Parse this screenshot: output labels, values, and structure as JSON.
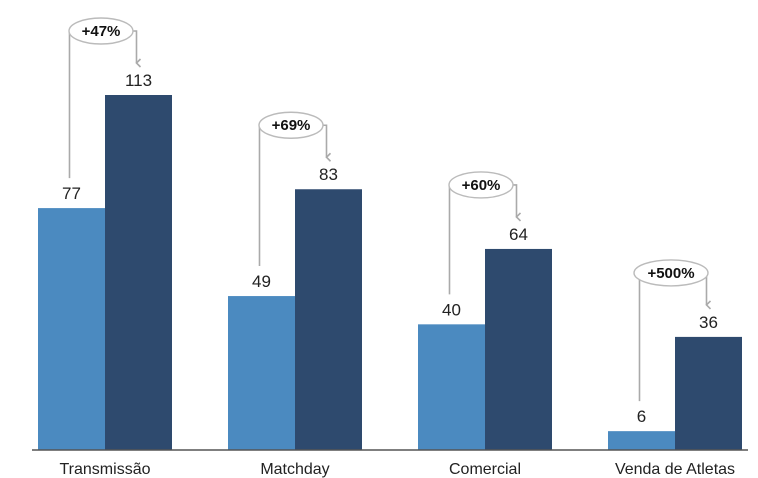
{
  "chart_data": {
    "type": "bar",
    "categories": [
      "Transmissão",
      "Matchday",
      "Comercial",
      "Venda de Atletas"
    ],
    "series": [
      {
        "values": [
          77,
          49,
          40,
          6
        ]
      },
      {
        "values": [
          113,
          83,
          64,
          36
        ]
      }
    ],
    "annotations": [
      "+47%",
      "+69%",
      "+60%",
      "+500%"
    ],
    "value_labels": [
      [
        "77",
        "49",
        "40",
        "6"
      ],
      [
        "113",
        "83",
        "64",
        "36"
      ]
    ],
    "ylim": [
      0,
      113
    ],
    "grid": false,
    "legend": "none",
    "colors": {
      "series_light": "#4b8ac0",
      "series_dark": "#2e4a6e",
      "axis": "#555555",
      "connector": "#aaaaaa"
    }
  }
}
